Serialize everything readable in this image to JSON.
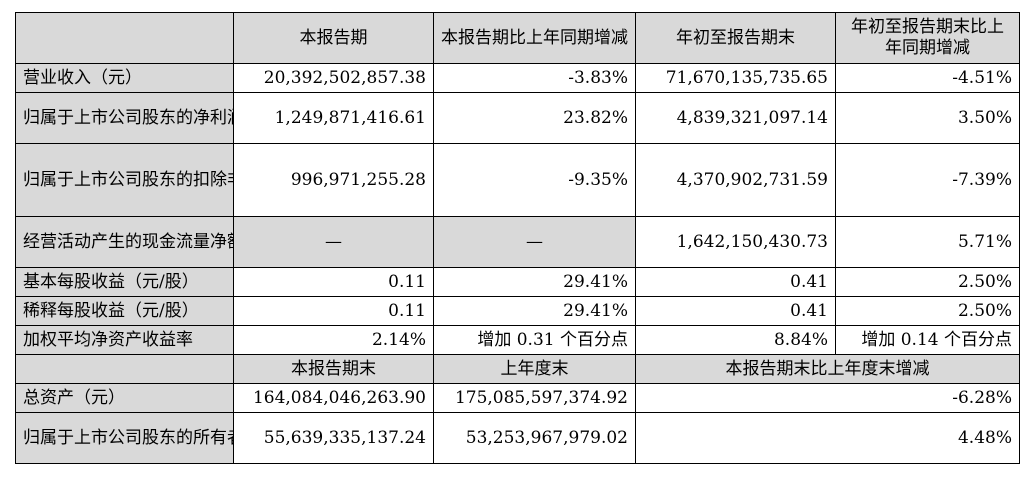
{
  "headers": {
    "c1": "本报告期",
    "c2": "本报告期比上年同期增减",
    "c3": "年初至报告期末",
    "c4": "年初至报告期末比上年同期增减"
  },
  "rows": [
    {
      "label": "营业收入（元）",
      "v1": "20,392,502,857.38",
      "v2": "-3.83%",
      "v3": "71,670,135,735.65",
      "v4": "-4.51%"
    },
    {
      "label": "归属于上市公司股东的净利润（元）",
      "v1": "1,249,871,416.61",
      "v2": "23.82%",
      "v3": "4,839,321,097.14",
      "v4": "3.50%"
    },
    {
      "label": "归属于上市公司股东的扣除非经常性损益的净利润（元）",
      "v1": "996,971,255.28",
      "v2": "-9.35%",
      "v3": "4,370,902,731.59",
      "v4": "-7.39%"
    },
    {
      "label": "经营活动产生的现金流量净额（元）",
      "v1": "—",
      "v2": "—",
      "v3": "1,642,150,430.73",
      "v4": "5.71%"
    },
    {
      "label": "基本每股收益（元/股）",
      "v1": "0.11",
      "v2": "29.41%",
      "v3": "0.41",
      "v4": "2.50%"
    },
    {
      "label": "稀释每股收益（元/股）",
      "v1": "0.11",
      "v2": "29.41%",
      "v3": "0.41",
      "v4": "2.50%"
    },
    {
      "label": "加权平均净资产收益率",
      "v1": "2.14%",
      "v2": "增加 0.31 个百分点",
      "v3": "8.84%",
      "v4": "增加 0.14 个百分点"
    }
  ],
  "headers2": {
    "c1": "本报告期末",
    "c2": "上年度末",
    "c3": "本报告期末比上年度末增减"
  },
  "rows2": [
    {
      "label": "总资产（元）",
      "v1": "164,084,046,263.90",
      "v2": "175,085,597,374.92",
      "v3": "-6.28%"
    },
    {
      "label": "归属于上市公司股东的所有者权益（元）",
      "v1": "55,639,335,137.24",
      "v2": "53,253,967,979.02",
      "v3": "4.48%"
    }
  ]
}
